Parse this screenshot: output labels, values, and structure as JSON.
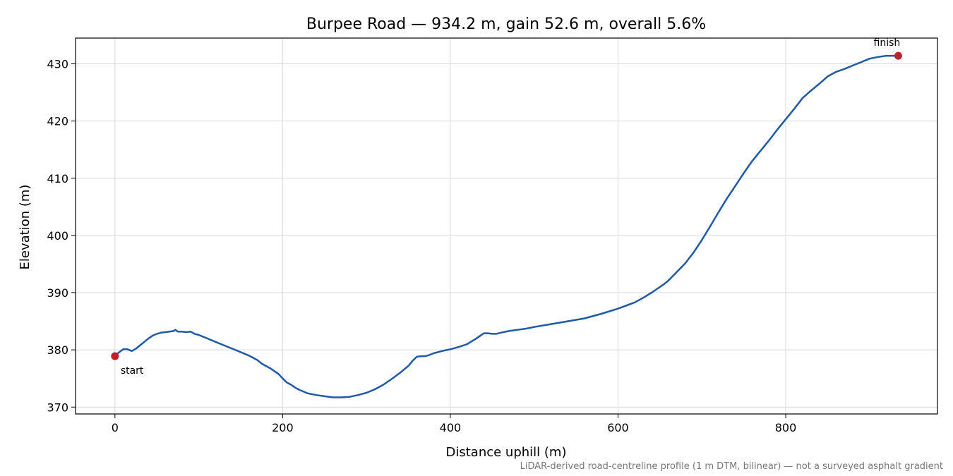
{
  "chart_data": {
    "type": "line",
    "title": "Burpee Road — 934.2 m, gain 52.6 m, overall 5.6%",
    "xlabel": "Distance uphill (m)",
    "ylabel": "Elevation (m)",
    "xlim": [
      -47,
      981
    ],
    "ylim": [
      368.8,
      434.5
    ],
    "xticks": [
      0,
      200,
      400,
      600,
      800
    ],
    "yticks": [
      370,
      380,
      390,
      400,
      410,
      420,
      430
    ],
    "grid": true,
    "line_color": "#1f5aa8",
    "marker_color": "#c0202a",
    "series": [
      {
        "x": [
          0,
          5,
          10,
          15,
          20,
          25,
          30,
          35,
          40,
          45,
          50,
          55,
          60,
          65,
          70,
          72,
          75,
          80,
          85,
          90,
          95,
          100,
          110,
          120,
          130,
          140,
          150,
          160,
          165,
          170,
          175,
          180,
          185,
          190,
          195,
          200,
          205,
          210,
          215,
          220,
          225,
          230,
          240,
          250,
          255,
          260,
          270,
          280,
          290,
          300,
          310,
          320,
          330,
          340,
          350,
          355,
          360,
          365,
          370,
          375,
          380,
          390,
          400,
          410,
          420,
          430,
          435,
          440,
          445,
          450,
          455,
          460,
          470,
          480,
          490,
          500,
          520,
          540,
          560,
          580,
          600,
          620,
          630,
          640,
          645,
          650,
          655,
          660,
          670,
          680,
          690,
          700,
          710,
          720,
          730,
          740,
          750,
          760,
          770,
          780,
          790,
          800,
          810,
          820,
          830,
          840,
          850,
          860,
          870,
          880,
          890,
          900,
          910,
          920,
          925,
          934.2
        ],
        "y": [
          378.9,
          379.6,
          380.1,
          380.1,
          379.8,
          380.2,
          380.8,
          381.4,
          382.0,
          382.5,
          382.8,
          383.0,
          383.1,
          383.2,
          383.3,
          383.5,
          383.2,
          383.2,
          383.1,
          383.2,
          382.8,
          382.6,
          382.0,
          381.4,
          380.8,
          380.2,
          379.6,
          379.0,
          378.6,
          378.2,
          377.6,
          377.2,
          376.8,
          376.3,
          375.8,
          375.0,
          374.3,
          373.9,
          373.4,
          373.0,
          372.7,
          372.4,
          372.1,
          371.9,
          371.8,
          371.7,
          371.7,
          371.8,
          372.1,
          372.5,
          373.1,
          373.9,
          374.9,
          376.0,
          377.2,
          378.1,
          378.8,
          378.9,
          378.9,
          379.1,
          379.4,
          379.8,
          380.1,
          380.5,
          381.0,
          381.9,
          382.4,
          382.9,
          382.9,
          382.8,
          382.8,
          383.0,
          383.3,
          383.5,
          383.7,
          384.0,
          384.5,
          385.0,
          385.5,
          386.3,
          387.2,
          388.3,
          389.1,
          390.0,
          390.5,
          391.0,
          391.5,
          392.1,
          393.6,
          395.1,
          397.0,
          399.2,
          401.6,
          404.1,
          406.5,
          408.7,
          410.9,
          413.0,
          414.8,
          416.6,
          418.5,
          420.3,
          422.1,
          424.0,
          425.3,
          426.5,
          427.8,
          428.6,
          429.1,
          429.7,
          430.3,
          430.9,
          431.2,
          431.4,
          431.4,
          431.4
        ]
      }
    ],
    "annotations": [
      {
        "text": "start",
        "x": 0,
        "y": 378.9
      },
      {
        "text": "finish",
        "x": 934.2,
        "y": 431.4
      }
    ],
    "footnote": "LiDAR-derived road-centreline profile (1 m DTM, bilinear) — not a surveyed asphalt gradient"
  }
}
